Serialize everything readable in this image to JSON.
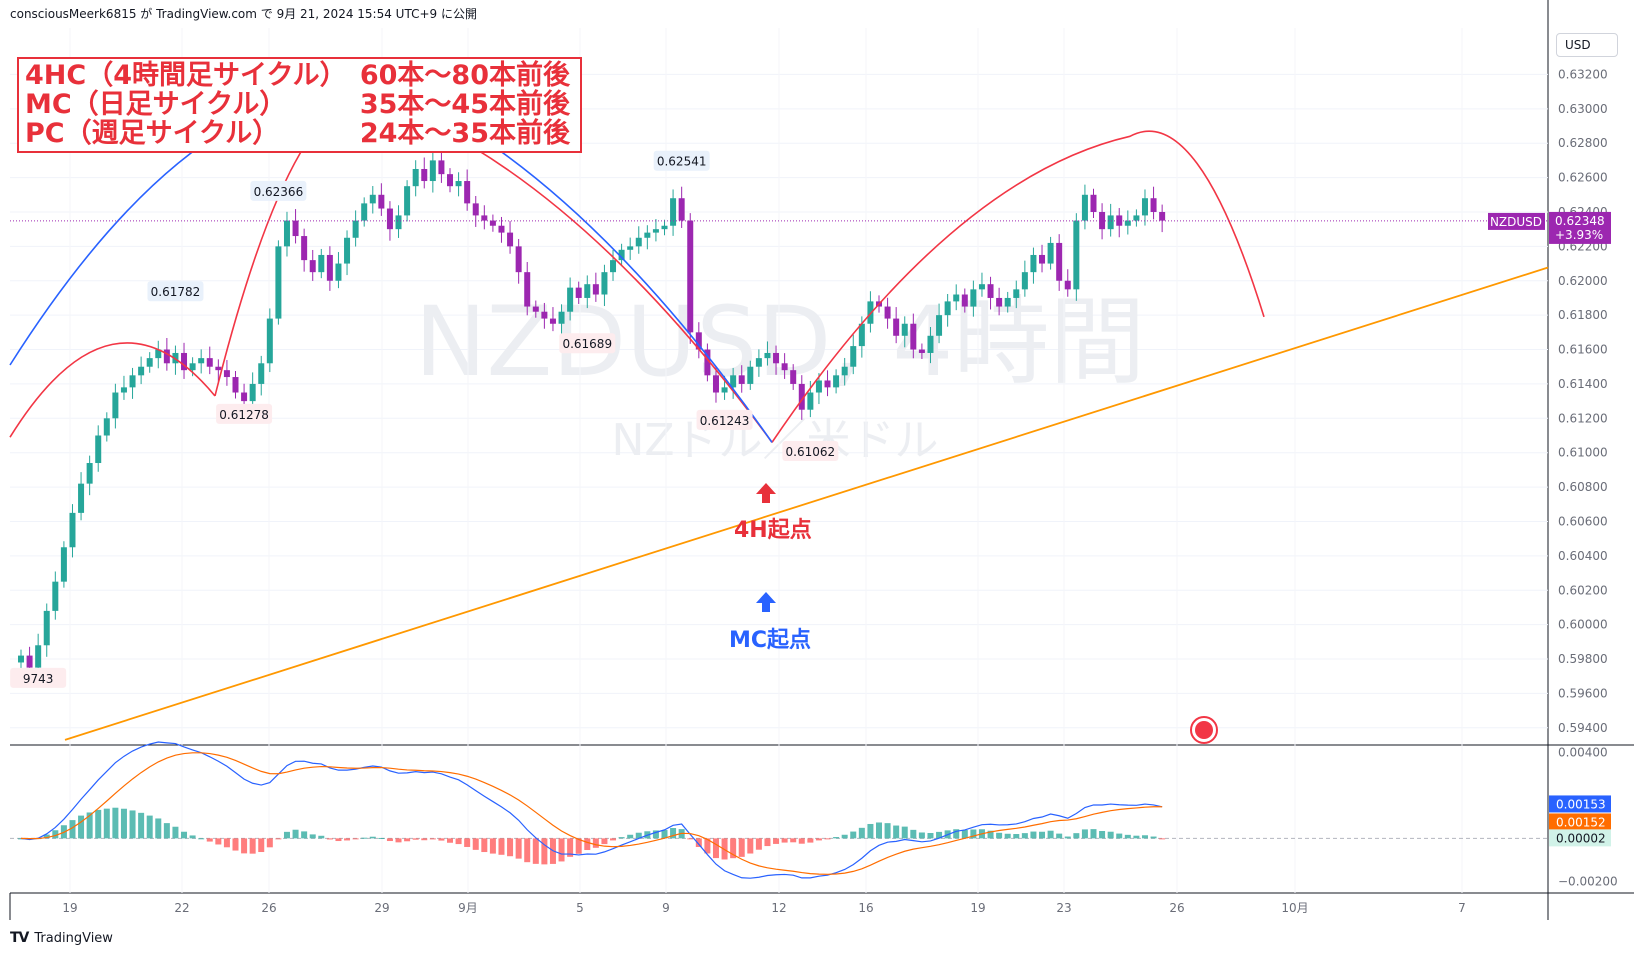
{
  "header": {
    "text": "consciousMeerk6815 が TradingView.com で 9月 21, 2024 15:54 UTC+9 に公開"
  },
  "footer": {
    "logo": "TV",
    "brand": "TradingView"
  },
  "currency_button": "USD",
  "watermark": {
    "symbol": "NZDUSD, 4時間",
    "description": "NZドル／米ドル"
  },
  "legend": {
    "rows": [
      {
        "label": "4HC（4時間足サイクル）",
        "value": "60本〜80本前後"
      },
      {
        "label": "MC（日足サイクル）",
        "value": "35本〜45本前後"
      },
      {
        "label": "PC（週足サイクル）",
        "value": "24本〜35本前後"
      }
    ]
  },
  "annotations": {
    "h4_start": "4H起点",
    "mc_start": "MC起点"
  },
  "colors": {
    "up": "#26a69a",
    "down": "#9c27b0",
    "red_cycle": "#f23645",
    "blue_cycle": "#2962ff",
    "trendline": "#ff9800",
    "macd_line": "#2962ff",
    "signal_line": "#ff6d00",
    "last_price_bg": "#9c27b0"
  },
  "chart_data": {
    "type": "candlestick",
    "symbol": "NZDUSD",
    "price_axis": {
      "ticks": [
        "0.63200",
        "0.63000",
        "0.62800",
        "0.62600",
        "0.62400",
        "0.62200",
        "0.62000",
        "0.61800",
        "0.61600",
        "0.61400",
        "0.61200",
        "0.61000",
        "0.60800",
        "0.60600",
        "0.60400",
        "0.60200",
        "0.60000",
        "0.59800",
        "0.59600",
        "0.59400"
      ],
      "range": [
        0.593,
        0.6347
      ]
    },
    "time_axis": [
      "19",
      "22",
      "26",
      "29",
      "9月",
      "5",
      "9",
      "12",
      "16",
      "19",
      "23",
      "26",
      "10月",
      "7"
    ],
    "last_price": {
      "symbol": "NZDUSD",
      "value": "0.62348",
      "change": "+3.93%"
    },
    "price_labels": [
      {
        "text": "0.61782",
        "price": 0.61782,
        "bar": 18
      },
      {
        "text": "0.62366",
        "price": 0.62366,
        "bar": 30
      },
      {
        "text": "0.61278",
        "price": 0.61278,
        "bar": 26
      },
      {
        "text": "0.61689",
        "price": 0.61689,
        "bar": 66
      },
      {
        "text": "0.62541",
        "price": 0.62541,
        "bar": 77
      },
      {
        "text": "0.61243",
        "price": 0.61243,
        "bar": 82
      },
      {
        "text": "0.61062",
        "price": 0.61062,
        "bar": 92
      },
      {
        "text": "9743",
        "price": 0.59743,
        "bar": 2
      }
    ],
    "macd": {
      "axis_ticks": [
        "0.00400",
        "−0.00200"
      ],
      "macd_value": "0.00153",
      "signal_value": "0.00152",
      "hist_value": "0.00002"
    }
  }
}
